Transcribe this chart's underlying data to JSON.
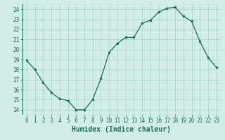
{
  "x": [
    0,
    1,
    2,
    3,
    4,
    5,
    6,
    7,
    8,
    9,
    10,
    11,
    12,
    13,
    14,
    15,
    16,
    17,
    18,
    19,
    20,
    21,
    22,
    23
  ],
  "y": [
    18.9,
    18.0,
    16.7,
    15.7,
    15.1,
    14.9,
    14.0,
    14.0,
    15.0,
    17.1,
    19.7,
    20.6,
    21.2,
    21.2,
    22.6,
    22.9,
    23.7,
    24.1,
    24.2,
    23.3,
    22.8,
    20.8,
    19.2,
    18.2
  ],
  "line_color": "#1a6b5a",
  "marker": "o",
  "marker_size": 2.0,
  "bg_color": "#d0ede8",
  "grid_color": "#aacfc9",
  "xlabel": "Humidex (Indice chaleur)",
  "xlim": [
    -0.5,
    23.5
  ],
  "ylim": [
    13.5,
    24.5
  ],
  "yticks": [
    14,
    15,
    16,
    17,
    18,
    19,
    20,
    21,
    22,
    23,
    24
  ],
  "xticks": [
    0,
    1,
    2,
    3,
    4,
    5,
    6,
    7,
    8,
    9,
    10,
    11,
    12,
    13,
    14,
    15,
    16,
    17,
    18,
    19,
    20,
    21,
    22,
    23
  ],
  "tick_fontsize": 5.5,
  "xlabel_fontsize": 7.0,
  "linewidth": 0.9
}
